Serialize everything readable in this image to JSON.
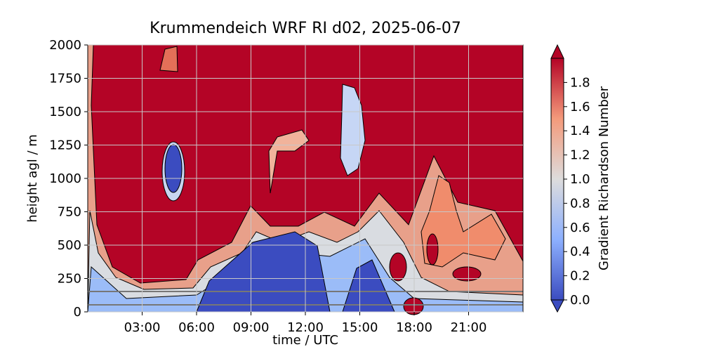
{
  "chart_data": {
    "type": "contour",
    "title": "Krummendeich WRF RI d02, 2025-06-07",
    "x_label": "time / UTC",
    "y_label": "height agl / m",
    "xlim": [
      0,
      24
    ],
    "xticks": [
      {
        "value": 3,
        "label": "03:00"
      },
      {
        "value": 6,
        "label": "06:00"
      },
      {
        "value": 9,
        "label": "09:00"
      },
      {
        "value": 12,
        "label": "12:00"
      },
      {
        "value": 15,
        "label": "15:00"
      },
      {
        "value": 18,
        "label": "18:00"
      },
      {
        "value": 21,
        "label": "21:00"
      }
    ],
    "ylim": [
      0,
      2000
    ],
    "yticks": [
      0,
      250,
      500,
      750,
      1000,
      1250,
      1500,
      1750,
      2000
    ],
    "grid": true,
    "colorbar": {
      "label": "Gradient Richardson Number",
      "lim": [
        0,
        2
      ],
      "ticks": [
        {
          "value": 0,
          "label": "0.0"
        },
        {
          "value": 0.2,
          "label": "0.2"
        },
        {
          "value": 0.4,
          "label": "0.4"
        },
        {
          "value": 0.6,
          "label": "0.6"
        },
        {
          "value": 0.8,
          "label": "0.8"
        },
        {
          "value": 1,
          "label": "1.0"
        },
        {
          "value": 1.2,
          "label": "1.2"
        },
        {
          "value": 1.4,
          "label": "1.4"
        },
        {
          "value": 1.6,
          "label": "1.6"
        },
        {
          "value": 1.8,
          "label": "1.8"
        }
      ],
      "colors": [
        "#3b4cc0",
        "#8db0fe",
        "#dddcdc",
        "#f49a7b",
        "#b40426"
      ]
    }
  }
}
